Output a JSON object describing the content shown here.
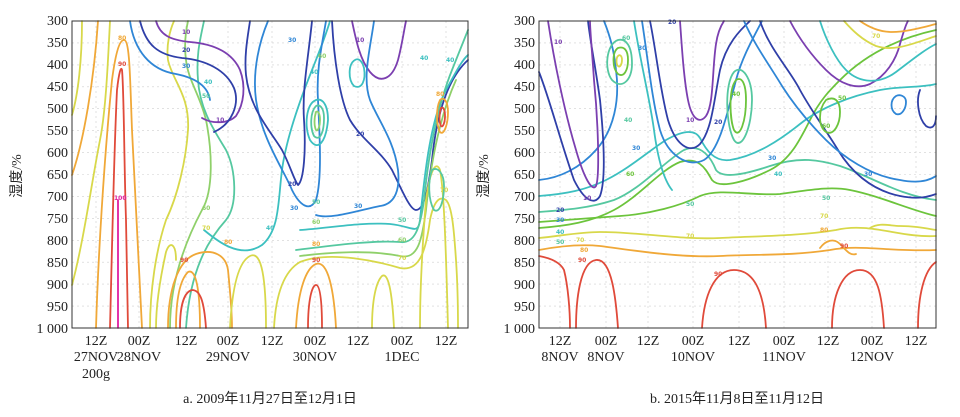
{
  "chart_data": [
    {
      "type": "contour",
      "ylabel": "湿度/%",
      "yticks": [
        "300",
        "350",
        "400",
        "450",
        "500",
        "550",
        "600",
        "650",
        "700",
        "750",
        "800",
        "850",
        "900",
        "950",
        "1 000"
      ],
      "x_ticks": [
        {
          "line1": "12Z",
          "line2": "27NOV"
        },
        {
          "line1": "00Z",
          "line2": "28NOV"
        },
        {
          "line1": "12Z",
          "line2": ""
        },
        {
          "line1": "00Z",
          "line2": "29NOV"
        },
        {
          "line1": "12Z",
          "line2": ""
        },
        {
          "line1": "00Z",
          "line2": "30NOV"
        },
        {
          "line1": "12Z",
          "line2": ""
        },
        {
          "line1": "00Z",
          "line2": "1DEC"
        },
        {
          "line1": "12Z",
          "line2": ""
        }
      ],
      "extra_label": "200g",
      "caption": "a. 2009年11月27日至12月1日",
      "contour_levels": [
        "10",
        "20",
        "30",
        "40",
        "50",
        "60",
        "70",
        "80",
        "90",
        "100"
      ],
      "colors": {
        "10": "#7b3fb0",
        "20": "#2f3fa8",
        "30": "#2f86d6",
        "40": "#3cc0c0",
        "50": "#55c8a0",
        "60": "#8fd06a",
        "70": "#d8d84a",
        "80": "#f0a838",
        "90": "#e04a3a",
        "100": "#e01ea0"
      }
    },
    {
      "type": "contour",
      "ylabel": "湿度/%",
      "yticks": [
        "300",
        "350",
        "400",
        "450",
        "500",
        "550",
        "600",
        "650",
        "700",
        "750",
        "800",
        "850",
        "900",
        "950",
        "1 000"
      ],
      "x_ticks": [
        {
          "line1": "12Z",
          "line2": "8NOV"
        },
        {
          "line1": "00Z",
          "line2": "8NOV"
        },
        {
          "line1": "12Z",
          "line2": ""
        },
        {
          "line1": "00Z",
          "line2": "10NOV"
        },
        {
          "line1": "12Z",
          "line2": ""
        },
        {
          "line1": "00Z",
          "line2": "11NOV"
        },
        {
          "line1": "12Z",
          "line2": ""
        },
        {
          "line1": "00Z",
          "line2": "12NOV"
        },
        {
          "line1": "12Z",
          "line2": ""
        }
      ],
      "caption": "b. 2015年11月8日至11月12日",
      "contour_levels": [
        "10",
        "20",
        "30",
        "40",
        "50",
        "60",
        "70",
        "80",
        "90"
      ],
      "colors": {
        "10": "#7b3fb0",
        "20": "#2f3fa8",
        "30": "#2f86d6",
        "40": "#3cc0c0",
        "50": "#55c8a0",
        "60": "#6cc43c",
        "70": "#d8d84a",
        "80": "#f0a838",
        "90": "#e04a3a"
      }
    }
  ]
}
